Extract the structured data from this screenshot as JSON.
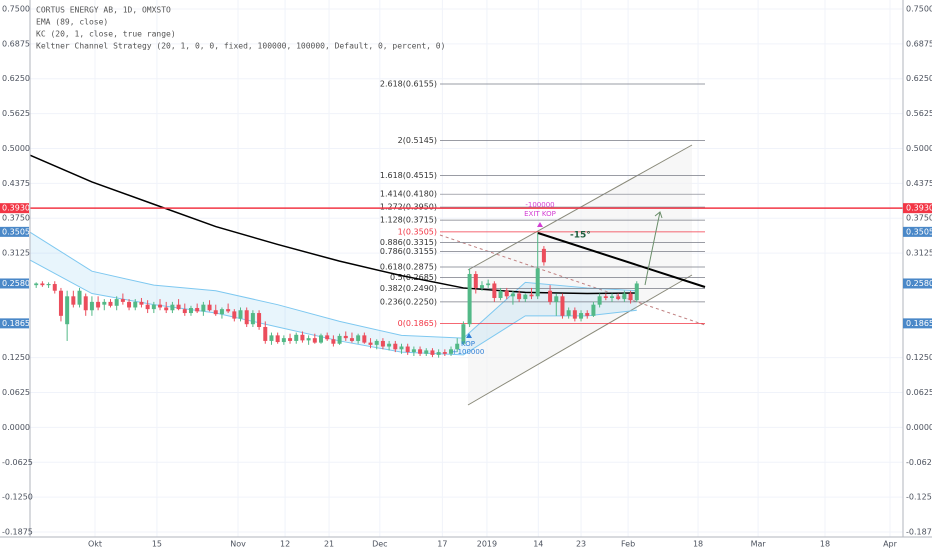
{
  "chart_data": {
    "type": "candlestick",
    "title": "CORTUS ENERGY AB, 1D, OMXSTO",
    "strategy": "Keltner Channel Strategy (20, 1, 0, 0, fixed, 100000, 100000, Default, 0, percent, 0)",
    "up_color": "#53b987",
    "down_color": "#eb4d5c",
    "x": [
      1,
      2,
      3,
      4,
      5,
      6,
      7,
      8,
      9,
      10,
      11,
      12,
      13,
      14,
      15,
      16,
      17,
      18,
      19,
      20,
      21,
      22,
      23,
      24,
      25,
      26,
      27,
      28,
      29,
      30,
      31,
      32,
      33,
      34,
      35,
      36,
      37,
      38,
      39,
      40,
      41,
      42,
      43,
      44,
      45,
      46,
      47,
      48,
      49,
      50,
      51,
      52,
      53,
      54,
      55,
      56,
      57,
      58,
      59,
      60,
      61,
      62,
      63,
      64,
      65,
      66,
      67,
      68,
      69,
      70,
      71,
      72,
      73,
      74,
      75,
      76,
      77,
      78,
      79,
      80,
      81,
      82,
      83,
      84,
      85,
      86,
      87,
      88,
      89,
      90,
      91,
      92,
      93,
      94,
      95,
      96,
      97,
      98
    ],
    "open": [
      0.255,
      0.258,
      0.255,
      0.257,
      0.245,
      0.185,
      0.235,
      0.22,
      0.235,
      0.21,
      0.225,
      0.22,
      0.225,
      0.218,
      0.23,
      0.225,
      0.215,
      0.225,
      0.22,
      0.212,
      0.22,
      0.215,
      0.21,
      0.22,
      0.212,
      0.205,
      0.214,
      0.208,
      0.22,
      0.21,
      0.203,
      0.212,
      0.208,
      0.195,
      0.21,
      0.185,
      0.205,
      0.18,
      0.155,
      0.165,
      0.153,
      0.16,
      0.155,
      0.166,
      0.156,
      0.16,
      0.152,
      0.165,
      0.158,
      0.15,
      0.164,
      0.16,
      0.155,
      0.165,
      0.152,
      0.148,
      0.155,
      0.145,
      0.15,
      0.14,
      0.145,
      0.135,
      0.14,
      0.132,
      0.138,
      0.13,
      0.135,
      0.132,
      0.14,
      0.15,
      0.185,
      0.275,
      0.25,
      0.255,
      0.258,
      0.232,
      0.245,
      0.235,
      0.24,
      0.23,
      0.238,
      0.235,
      0.32,
      0.245,
      0.225,
      0.235,
      0.2,
      0.21,
      0.195,
      0.205,
      0.2,
      0.22,
      0.235,
      0.232,
      0.235,
      0.23,
      0.24,
      0.228
    ],
    "high": [
      0.26,
      0.262,
      0.26,
      0.262,
      0.25,
      0.245,
      0.245,
      0.25,
      0.24,
      0.235,
      0.235,
      0.23,
      0.23,
      0.235,
      0.24,
      0.23,
      0.23,
      0.232,
      0.228,
      0.225,
      0.23,
      0.225,
      0.225,
      0.23,
      0.222,
      0.218,
      0.222,
      0.225,
      0.228,
      0.22,
      0.215,
      0.222,
      0.212,
      0.215,
      0.215,
      0.21,
      0.21,
      0.19,
      0.17,
      0.17,
      0.165,
      0.168,
      0.17,
      0.172,
      0.165,
      0.168,
      0.168,
      0.17,
      0.165,
      0.168,
      0.172,
      0.17,
      0.168,
      0.17,
      0.16,
      0.158,
      0.16,
      0.155,
      0.155,
      0.15,
      0.15,
      0.145,
      0.145,
      0.142,
      0.142,
      0.14,
      0.14,
      0.145,
      0.16,
      0.19,
      0.285,
      0.28,
      0.262,
      0.265,
      0.262,
      0.25,
      0.25,
      0.245,
      0.245,
      0.24,
      0.25,
      0.35,
      0.325,
      0.255,
      0.24,
      0.24,
      0.215,
      0.215,
      0.21,
      0.21,
      0.225,
      0.24,
      0.24,
      0.24,
      0.24,
      0.245,
      0.245,
      0.262
    ],
    "low": [
      0.25,
      0.252,
      0.25,
      0.24,
      0.19,
      0.155,
      0.215,
      0.215,
      0.2,
      0.2,
      0.21,
      0.21,
      0.215,
      0.21,
      0.22,
      0.21,
      0.21,
      0.215,
      0.205,
      0.205,
      0.21,
      0.205,
      0.205,
      0.21,
      0.2,
      0.2,
      0.205,
      0.2,
      0.208,
      0.2,
      0.195,
      0.205,
      0.19,
      0.19,
      0.18,
      0.18,
      0.175,
      0.15,
      0.148,
      0.15,
      0.148,
      0.15,
      0.15,
      0.152,
      0.148,
      0.15,
      0.15,
      0.155,
      0.145,
      0.148,
      0.155,
      0.152,
      0.15,
      0.15,
      0.142,
      0.14,
      0.14,
      0.138,
      0.135,
      0.132,
      0.13,
      0.128,
      0.128,
      0.128,
      0.126,
      0.125,
      0.128,
      0.128,
      0.135,
      0.148,
      0.18,
      0.24,
      0.245,
      0.25,
      0.225,
      0.228,
      0.23,
      0.22,
      0.225,
      0.225,
      0.23,
      0.23,
      0.29,
      0.22,
      0.2,
      0.195,
      0.195,
      0.19,
      0.19,
      0.195,
      0.198,
      0.215,
      0.228,
      0.225,
      0.228,
      0.225,
      0.222,
      0.225
    ],
    "close": [
      0.258,
      0.255,
      0.257,
      0.245,
      0.2,
      0.235,
      0.22,
      0.245,
      0.21,
      0.225,
      0.215,
      0.225,
      0.218,
      0.23,
      0.225,
      0.215,
      0.225,
      0.22,
      0.212,
      0.22,
      0.215,
      0.21,
      0.22,
      0.212,
      0.205,
      0.214,
      0.208,
      0.22,
      0.21,
      0.203,
      0.212,
      0.208,
      0.195,
      0.21,
      0.185,
      0.205,
      0.18,
      0.155,
      0.165,
      0.153,
      0.16,
      0.155,
      0.166,
      0.156,
      0.16,
      0.152,
      0.165,
      0.158,
      0.15,
      0.164,
      0.16,
      0.155,
      0.165,
      0.152,
      0.148,
      0.155,
      0.145,
      0.15,
      0.14,
      0.145,
      0.135,
      0.14,
      0.132,
      0.138,
      0.13,
      0.135,
      0.132,
      0.14,
      0.15,
      0.185,
      0.275,
      0.25,
      0.255,
      0.258,
      0.232,
      0.245,
      0.235,
      0.24,
      0.23,
      0.238,
      0.235,
      0.285,
      0.296,
      0.225,
      0.235,
      0.2,
      0.21,
      0.195,
      0.205,
      0.2,
      0.22,
      0.235,
      0.232,
      0.235,
      0.23,
      0.24,
      0.228,
      0.258
    ],
    "series": [
      {
        "name": "EMA (89, close)",
        "color": "#000000",
        "x": [
          0,
          10,
          20,
          30,
          40,
          50,
          60,
          70,
          80,
          90,
          98
        ],
        "values": [
          0.488,
          0.44,
          0.4,
          0.36,
          0.328,
          0.298,
          0.272,
          0.25,
          0.242,
          0.24,
          0.241
        ]
      }
    ],
    "bands": [
      {
        "name": "KC (20, 1, close, true range)",
        "color": "#7ec8f0",
        "x": [
          0,
          10,
          20,
          30,
          40,
          50,
          60,
          70,
          80,
          90,
          98
        ],
        "upper": [
          0.35,
          0.28,
          0.255,
          0.245,
          0.22,
          0.19,
          0.165,
          0.16,
          0.26,
          0.25,
          0.245
        ],
        "lower": [
          0.3,
          0.24,
          0.22,
          0.205,
          0.18,
          0.155,
          0.135,
          0.13,
          0.2,
          0.2,
          0.21
        ]
      }
    ],
    "fib_color": "#787b86",
    "fib_levels": [
      {
        "value": 0.6155,
        "label": "2.618(0.6155)"
      },
      {
        "value": 0.5145,
        "label": "2(0.5145)"
      },
      {
        "value": 0.4515,
        "label": "1.618(0.4515)"
      },
      {
        "value": 0.418,
        "label": "1.414(0.4180)"
      },
      {
        "value": 0.395,
        "label": "1.272(0.3950)"
      },
      {
        "value": 0.3715,
        "label": "1.128(0.3715)"
      },
      {
        "value": 0.3505,
        "label": "1(0.3505)",
        "color": "#f23645"
      },
      {
        "value": 0.3315,
        "label": "0.886(0.3315)"
      },
      {
        "value": 0.3155,
        "label": "0.786(0.3155)"
      },
      {
        "value": 0.2875,
        "label": "0.618(0.2875)"
      },
      {
        "value": 0.2685,
        "label": "0.5(0.2685)"
      },
      {
        "value": 0.249,
        "label": "0.382(0.2490)"
      },
      {
        "value": 0.225,
        "label": "0.236(0.2250)"
      },
      {
        "value": 0.1865,
        "label": "0(0.1865)",
        "color": "#f23645"
      }
    ],
    "price_labels": [
      {
        "value": 0.393,
        "label": "0.3930",
        "color": "#f23645",
        "line": true
      },
      {
        "value": 0.3505,
        "label": "0.3505",
        "color": "#4a88c8"
      },
      {
        "value": 0.258,
        "label": "0.2580",
        "color": "#4a88c8"
      },
      {
        "value": 0.1865,
        "label": "0.1865",
        "color": "#4a88c8"
      }
    ],
    "annotations": [
      "-100000",
      "EXIT KOP",
      "KOP",
      "+100000",
      "-15°"
    ],
    "xlim": [
      0,
      141
    ],
    "xticks": [
      {
        "value": 10.5,
        "label": "Okt"
      },
      {
        "value": 20.5,
        "label": "15"
      },
      {
        "value": 33.6,
        "label": "Nov"
      },
      {
        "value": 41.2,
        "label": "12"
      },
      {
        "value": 48.3,
        "label": "21"
      },
      {
        "value": 56.5,
        "label": "Dec"
      },
      {
        "value": 66.6,
        "label": "17"
      },
      {
        "value": 73.8,
        "label": "2019"
      },
      {
        "value": 82.1,
        "label": "14"
      },
      {
        "value": 89,
        "label": "23"
      },
      {
        "value": 96.6,
        "label": "Feb"
      },
      {
        "value": 107.9,
        "label": "18"
      },
      {
        "value": 117.6,
        "label": "Mar"
      },
      {
        "value": 128.4,
        "label": "18"
      },
      {
        "value": 138.9,
        "label": "Apr"
      }
    ],
    "ylim": [
      -0.2018,
      0.7661
    ],
    "yticks": [
      {
        "value": 0.75,
        "label": "0.7500"
      },
      {
        "value": 0.6875,
        "label": "0.6875"
      },
      {
        "value": 0.625,
        "label": "0.6250"
      },
      {
        "value": 0.5625,
        "label": "0.5625"
      },
      {
        "value": 0.5,
        "label": "0.5000"
      },
      {
        "value": 0.4375,
        "label": "0.4375"
      },
      {
        "value": 0.375,
        "label": "0.3750"
      },
      {
        "value": 0.3125,
        "label": "0.3125"
      },
      {
        "value": 0.125,
        "label": "0.1250"
      },
      {
        "value": 0.0625,
        "label": "0.0625"
      },
      {
        "value": 0,
        "label": "0.0000"
      },
      {
        "value": -0.0625,
        "label": "-0.0625"
      },
      {
        "value": -0.125,
        "label": "-0.1250"
      },
      {
        "value": -0.1875,
        "label": "-0.1875"
      }
    ],
    "grid": true
  }
}
